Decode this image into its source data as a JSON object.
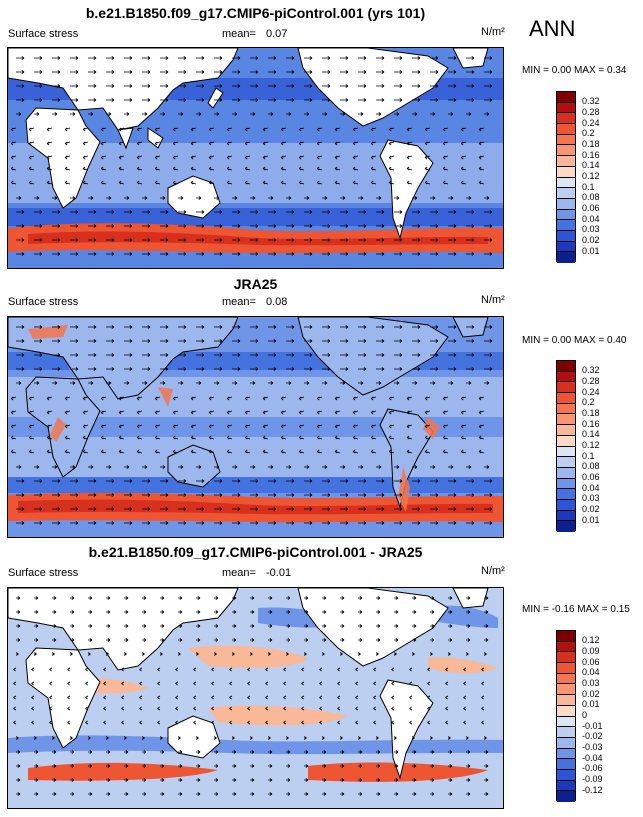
{
  "season": "ANN",
  "panels": [
    {
      "title": "b.e21.B1850.f09_g17.CMIP6-piControl.001 (yrs 101)",
      "variable": "Surface stress",
      "mean_label": "mean=",
      "mean": "0.07",
      "units": "N/m²",
      "min_max": "MIN =  0.00 MAX =  0.34",
      "colorbar": {
        "levels": [
          "0.32",
          "0.28",
          "0.24",
          "0.2",
          "0.18",
          "0.16",
          "0.14",
          "0.12",
          "0.1",
          "0.08",
          "0.06",
          "0.04",
          "0.03",
          "0.02",
          "0.01"
        ],
        "colors": [
          "#7f0000",
          "#b30f0f",
          "#d7301f",
          "#ee5533",
          "#f4754e",
          "#f7966f",
          "#f9b999",
          "#fcdbc6",
          "#dde6f5",
          "#bccff0",
          "#9bb7ee",
          "#6f95e8",
          "#4473e0",
          "#2b55d6",
          "#1a39bd",
          "#0b1f8e"
        ]
      }
    },
    {
      "title": "JRA25",
      "variable": "Surface stress",
      "mean_label": "mean=",
      "mean": "0.08",
      "units": "N/m²",
      "min_max": "MIN =  0.00 MAX =  0.40",
      "colorbar": {
        "levels": [
          "0.32",
          "0.28",
          "0.24",
          "0.2",
          "0.18",
          "0.16",
          "0.14",
          "0.12",
          "0.1",
          "0.08",
          "0.06",
          "0.04",
          "0.03",
          "0.02",
          "0.01"
        ],
        "colors": [
          "#7f0000",
          "#b30f0f",
          "#d7301f",
          "#ee5533",
          "#f4754e",
          "#f7966f",
          "#f9b999",
          "#fcdbc6",
          "#dde6f5",
          "#bccff0",
          "#9bb7ee",
          "#6f95e8",
          "#4473e0",
          "#2b55d6",
          "#1a39bd",
          "#0b1f8e"
        ]
      }
    },
    {
      "title": "b.e21.B1850.f09_g17.CMIP6-piControl.001 - JRA25",
      "variable": "Surface stress",
      "mean_label": "mean=",
      "mean": "-0.01",
      "units": "N/m²",
      "min_max": "MIN = -0.16 MAX =  0.15",
      "colorbar": {
        "levels": [
          "0.12",
          "0.09",
          "0.06",
          "0.04",
          "0.03",
          "0.02",
          "0.01",
          "0",
          "-0.01",
          "-0.02",
          "-0.03",
          "-0.04",
          "-0.06",
          "-0.09",
          "-0.12"
        ],
        "colors": [
          "#7f0000",
          "#b30f0f",
          "#d7301f",
          "#ee5533",
          "#f4754e",
          "#f7966f",
          "#f9b999",
          "#fcdbc6",
          "#dde6f5",
          "#bccff0",
          "#9bb7ee",
          "#6f95e8",
          "#4473e0",
          "#2b55d6",
          "#1a39bd",
          "#0b1f8e"
        ]
      }
    }
  ]
}
